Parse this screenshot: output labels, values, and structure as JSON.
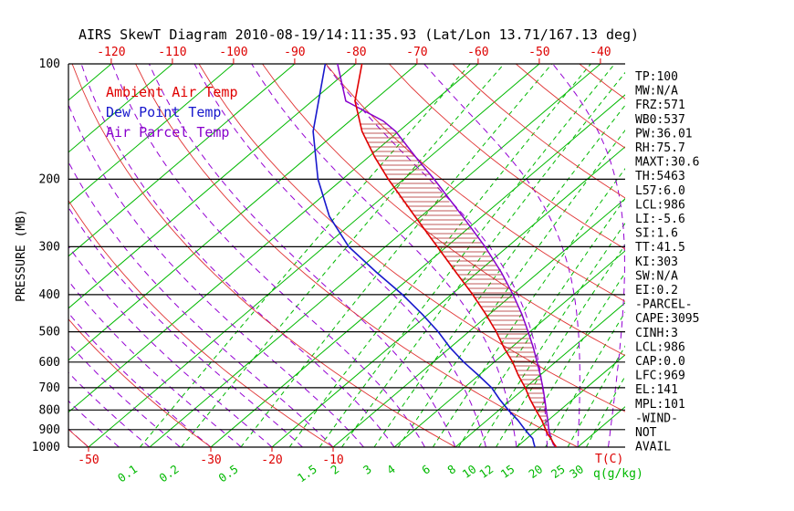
{
  "title": "AIRS SkewT Diagram 2010-08-19/14:11:35.93 (Lat/Lon 13.71/167.13 deg)",
  "legend": {
    "items": [
      {
        "label": "Ambient Air Temp",
        "color": "#e00000"
      },
      {
        "label": "Dew Point Temp",
        "color": "#1818cc"
      },
      {
        "label": "Air Parcel Temp",
        "color": "#8800cc"
      }
    ]
  },
  "axes": {
    "pressure_label": "PRESSURE (MB)",
    "pressure_ticks": [
      100,
      200,
      300,
      400,
      500,
      600,
      700,
      800,
      900,
      1000
    ],
    "top_temp_ticks": [
      -120,
      -110,
      -100,
      -90,
      -80,
      -70,
      -60,
      -50,
      -40
    ],
    "bottom_temp_ticks": [
      -50,
      -30,
      -20,
      -10
    ],
    "temp_unit_label": "T(C)",
    "mixing_unit_label": "q(g/kg)",
    "mixing_labels": [
      0.1,
      0.2,
      0.5,
      1.5,
      2,
      3,
      4,
      6,
      8,
      10,
      12,
      15,
      20,
      25,
      30
    ]
  },
  "stats": [
    "TP:100",
    "MW:N/A",
    "FRZ:571",
    "WB0:537",
    "PW:36.01",
    "RH:75.7",
    "MAXT:30.6",
    "TH:5463",
    "L57:6.0",
    "LCL:986",
    "LI:-5.6",
    "SI:1.6",
    "TT:41.5",
    "KI:303",
    "SW:N/A",
    "EI:0.2",
    "-PARCEL-",
    "CAPE:3095",
    "CINH:3",
    "LCL:986",
    "CAP:0.0",
    "LFC:969",
    "EL:141",
    "MPL:101",
    "-WIND-",
    "NOT",
    "AVAIL"
  ],
  "colors": {
    "isotherm_green": "#00b800",
    "moist_adiabat_purple": "#9400d3",
    "dry_adiabat_red": "#e03333",
    "ambient_red": "#e00000",
    "dewpoint_blue": "#1818cc",
    "parcel_purple": "#8800cc",
    "hatch_red": "#aa2222",
    "axis_black": "#000000",
    "temp_label_red": "#dd0000"
  },
  "chart_data": {
    "type": "line",
    "title": "AIRS SkewT Diagram 2010-08-19/14:11:35.93 (Lat/Lon 13.71/167.13 deg)",
    "x_axis": {
      "label": "T(C)",
      "unit": "deg C",
      "top_ticks": [
        -120,
        -110,
        -100,
        -90,
        -80,
        -70,
        -60,
        -50,
        -40
      ],
      "bottom_ticks": [
        -50,
        -30,
        -20,
        -10
      ],
      "skewed": true
    },
    "y_axis": {
      "label": "PRESSURE (MB)",
      "scale": "log",
      "range": [
        100,
        1000
      ],
      "ticks": [
        100,
        200,
        300,
        400,
        500,
        600,
        700,
        800,
        900,
        1000
      ]
    },
    "series": [
      {
        "name": "Ambient Air Temp",
        "color": "#e00000",
        "points_mb_c": [
          [
            1000,
            26.5
          ],
          [
            975,
            25.2
          ],
          [
            950,
            24.0
          ],
          [
            925,
            22.6
          ],
          [
            900,
            21.4
          ],
          [
            850,
            18.9
          ],
          [
            800,
            16.0
          ],
          [
            750,
            13.0
          ],
          [
            700,
            10.0
          ],
          [
            650,
            6.5
          ],
          [
            600,
            3.0
          ],
          [
            550,
            -1.2
          ],
          [
            500,
            -5.5
          ],
          [
            450,
            -10.6
          ],
          [
            400,
            -16.5
          ],
          [
            350,
            -23.5
          ],
          [
            300,
            -31.5
          ],
          [
            250,
            -41.0
          ],
          [
            200,
            -52.5
          ],
          [
            175,
            -59.0
          ],
          [
            150,
            -66.0
          ],
          [
            125,
            -73.0
          ],
          [
            100,
            -79.0
          ]
        ]
      },
      {
        "name": "Dew Point Temp",
        "color": "#1818cc",
        "points_mb_c": [
          [
            1000,
            23.0
          ],
          [
            975,
            22.0
          ],
          [
            950,
            21.0
          ],
          [
            925,
            19.5
          ],
          [
            900,
            18.0
          ],
          [
            850,
            15.0
          ],
          [
            800,
            11.5
          ],
          [
            750,
            8.0
          ],
          [
            700,
            4.5
          ],
          [
            650,
            0.0
          ],
          [
            600,
            -5.0
          ],
          [
            550,
            -10.0
          ],
          [
            500,
            -15.0
          ],
          [
            450,
            -21.0
          ],
          [
            400,
            -28.0
          ],
          [
            350,
            -36.5
          ],
          [
            300,
            -46.0
          ],
          [
            250,
            -55.0
          ],
          [
            200,
            -64.0
          ],
          [
            150,
            -74.0
          ],
          [
            100,
            -85.0
          ]
        ]
      },
      {
        "name": "Air Parcel Temp",
        "color": "#8800cc",
        "points_mb_c": [
          [
            1000,
            26.5
          ],
          [
            986,
            25.6
          ],
          [
            950,
            24.0
          ],
          [
            900,
            21.9
          ],
          [
            850,
            19.9
          ],
          [
            800,
            17.7
          ],
          [
            750,
            15.4
          ],
          [
            700,
            12.9
          ],
          [
            650,
            10.1
          ],
          [
            600,
            7.0
          ],
          [
            550,
            3.6
          ],
          [
            500,
            -0.3
          ],
          [
            450,
            -4.7
          ],
          [
            400,
            -9.9
          ],
          [
            350,
            -16.1
          ],
          [
            300,
            -23.7
          ],
          [
            250,
            -33.2
          ],
          [
            200,
            -45.0
          ],
          [
            175,
            -52.3
          ],
          [
            150,
            -60.5
          ],
          [
            141,
            -64.5
          ],
          [
            125,
            -74.5
          ],
          [
            100,
            -83.0
          ]
        ]
      }
    ],
    "background": {
      "isotherms_c": {
        "min": -160,
        "max": 40,
        "step": 10
      },
      "dry_adiabats_theta_c": [
        -50,
        -30,
        -10,
        10,
        30,
        50,
        70,
        90,
        110,
        130,
        150,
        170
      ],
      "moist_adiabats_tw_c": {
        "min": -50,
        "max": 40,
        "step": 5
      },
      "mixing_ratio_g_kg": [
        0.1,
        0.2,
        0.5,
        1,
        1.5,
        2,
        3,
        4,
        6,
        8,
        10,
        12,
        15,
        20,
        25,
        30
      ]
    },
    "cape_hatch": {
      "between": [
        "Ambient Air Temp",
        "Air Parcel Temp"
      ],
      "pressure_range_mb": [
        141,
        969
      ]
    },
    "grid": "skew-t log-p",
    "legend_position": "upper-left-inside"
  }
}
